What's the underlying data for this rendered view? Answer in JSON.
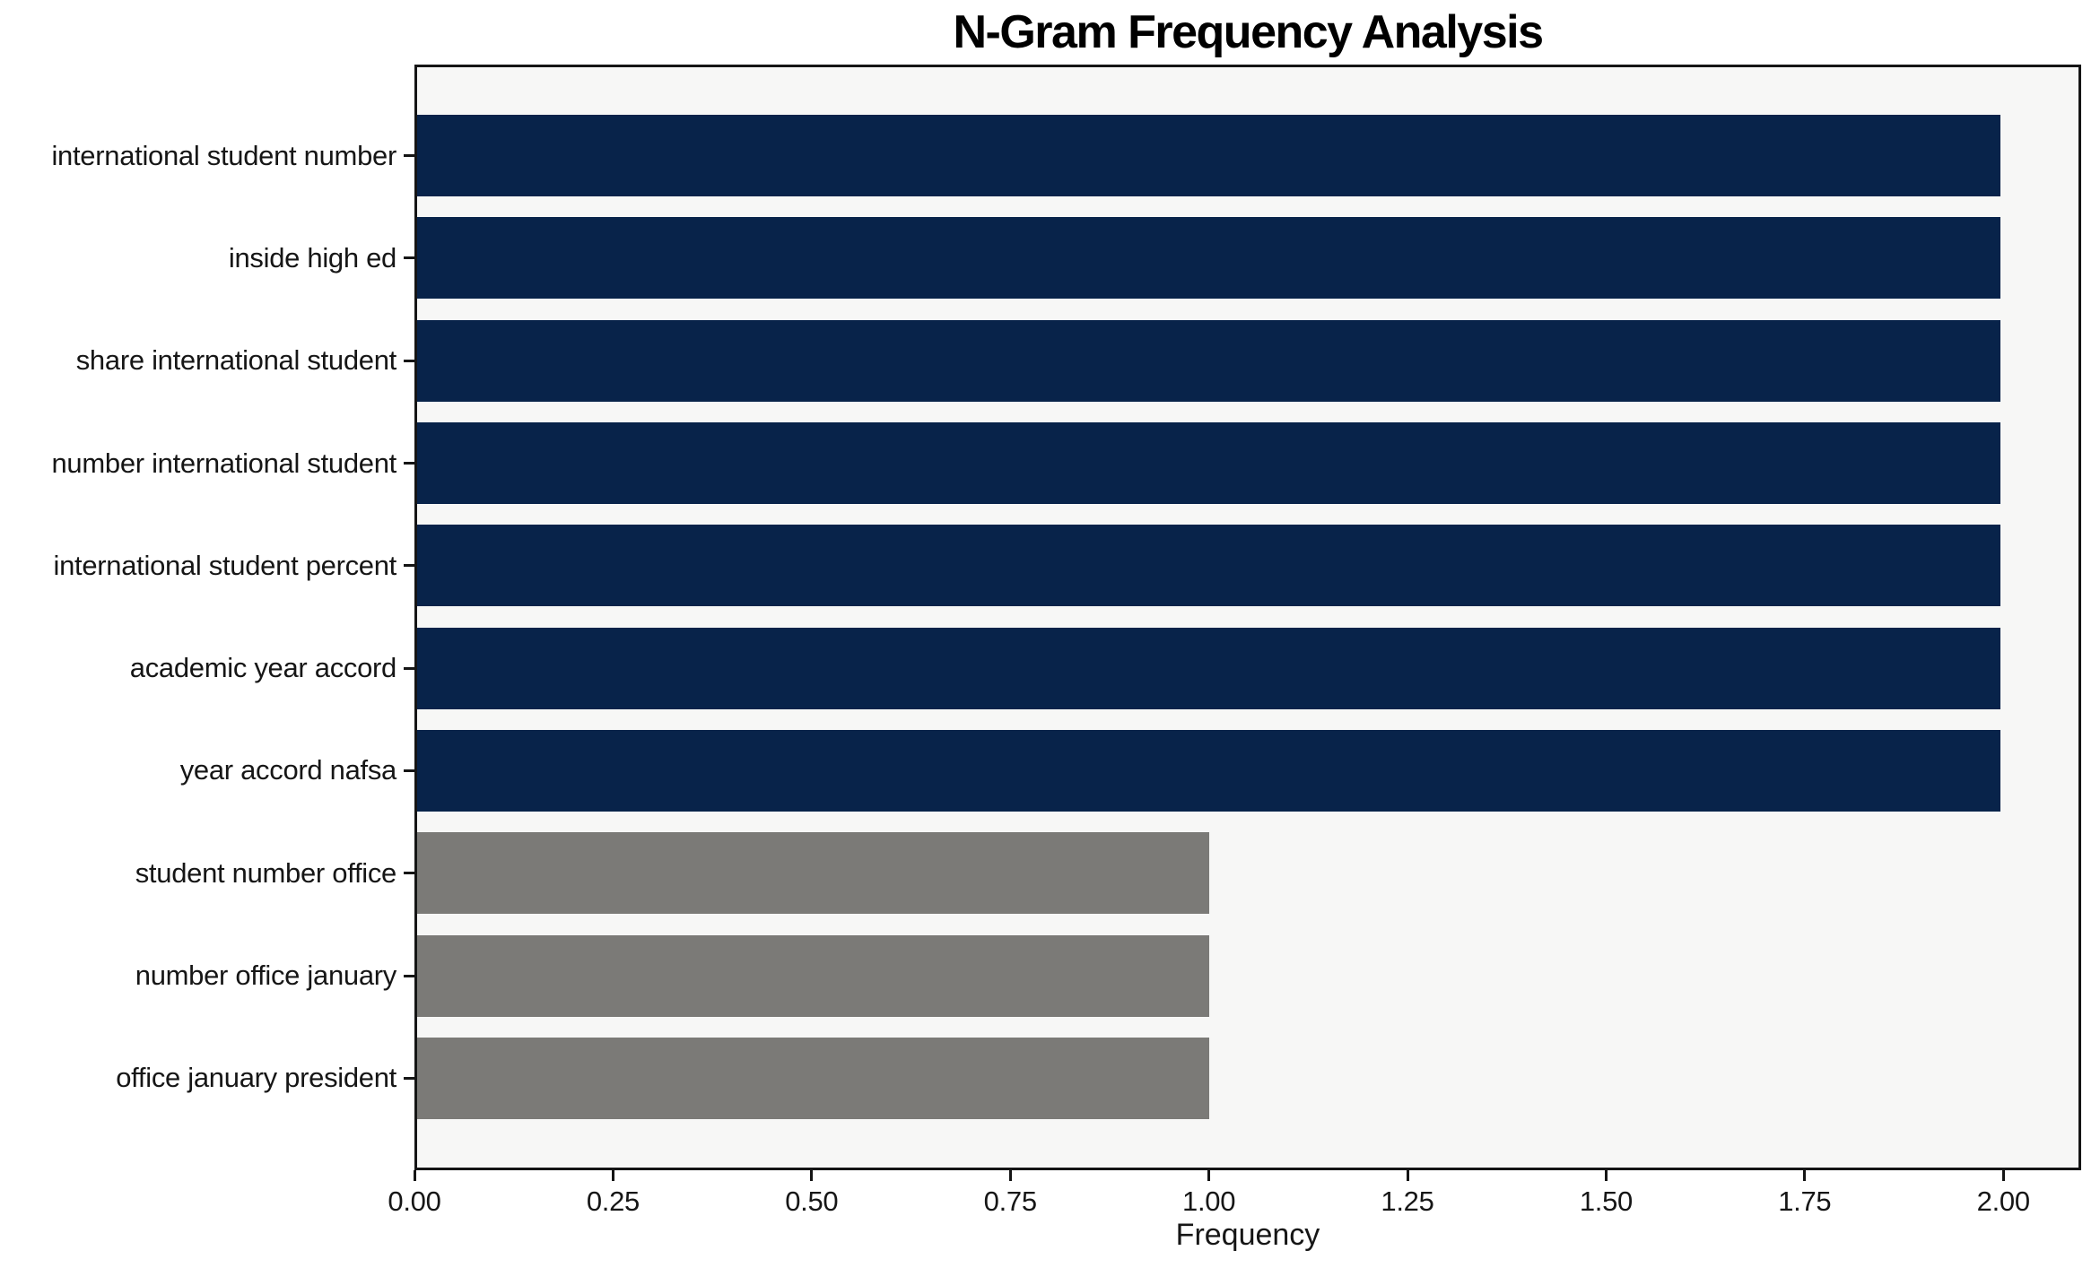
{
  "figure": {
    "background": "#ffffff",
    "plot_background": "#f7f7f6",
    "spine_color": "#151515",
    "navy_color": "#08234a",
    "gray_color": "#7b7a77"
  },
  "chart_data": {
    "type": "bar",
    "orientation": "horizontal",
    "title": "N-Gram Frequency Analysis",
    "xlabel": "Frequency",
    "ylabel": "",
    "categories": [
      "international student number",
      "inside high ed",
      "share international student",
      "number international student",
      "international student percent",
      "academic year accord",
      "year accord nafsa",
      "student number office",
      "number office january",
      "office january president"
    ],
    "values": [
      2,
      2,
      2,
      2,
      2,
      2,
      2,
      1,
      1,
      1
    ],
    "bar_colors": [
      "#08234a",
      "#08234a",
      "#08234a",
      "#08234a",
      "#08234a",
      "#08234a",
      "#08234a",
      "#7b7a77",
      "#7b7a77",
      "#7b7a77"
    ],
    "xlim": [
      0,
      2.098
    ],
    "xticks": [
      0,
      0.25,
      0.5,
      0.75,
      1.0,
      1.25,
      1.5,
      1.75,
      2.0
    ],
    "xtick_labels": [
      "0.00",
      "0.25",
      "0.50",
      "0.75",
      "1.00",
      "1.25",
      "1.50",
      "1.75",
      "2.00"
    ],
    "grid": false,
    "legend": null
  }
}
